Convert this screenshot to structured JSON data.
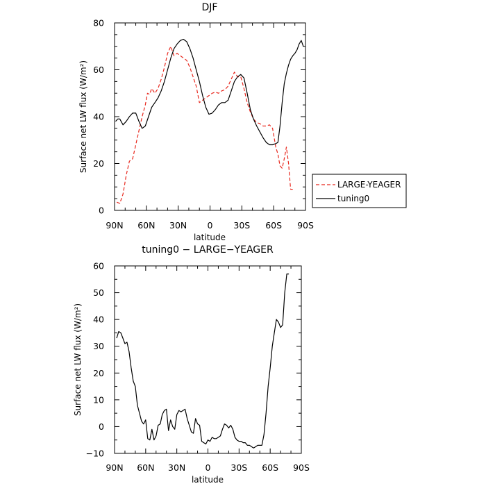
{
  "chart_data": [
    {
      "type": "line",
      "title": "DJF",
      "xlabel": "latitude",
      "ylabel": "Surface net LW flux (W/m²)",
      "xlim": [
        90,
        -90
      ],
      "ylim": [
        0,
        80
      ],
      "x_ticks": [
        90,
        60,
        30,
        0,
        -30,
        -60,
        -90
      ],
      "x_tick_labels": [
        "90N",
        "60N",
        "30N",
        "0",
        "30S",
        "60S",
        "90S"
      ],
      "y_ticks": [
        0,
        20,
        40,
        60,
        80
      ],
      "y_tick_labels": [
        "0",
        "20",
        "40",
        "60",
        "80"
      ],
      "grid": false,
      "legend": "right-outside",
      "series": [
        {
          "name": "LARGE-YEAGER",
          "color": "#e8281e",
          "dash": "dashed",
          "x": [
            88,
            85,
            82,
            79,
            76,
            73,
            70,
            67,
            64,
            61,
            59,
            57,
            55,
            52,
            49,
            46,
            43,
            40,
            37,
            34,
            31,
            28,
            25,
            22,
            19,
            16,
            13,
            10,
            7,
            4,
            1,
            -2,
            -5,
            -8,
            -11,
            -14,
            -17,
            -20,
            -23,
            -26,
            -29,
            -32,
            -35,
            -38,
            -41,
            -44,
            -47,
            -50,
            -53,
            -56,
            -59,
            -62,
            -64,
            -66,
            -68,
            -70,
            -72,
            -74,
            -76,
            -78
          ],
          "values": [
            3.5,
            3,
            7,
            15,
            21,
            22,
            28,
            34,
            40,
            45,
            50,
            49.5,
            52,
            50,
            52,
            56,
            61,
            67,
            70,
            66,
            67,
            66,
            65,
            64,
            61,
            57,
            53,
            46,
            47,
            48,
            49,
            50,
            50.5,
            50,
            51,
            51.5,
            53,
            56,
            59,
            57,
            57,
            52,
            46,
            42,
            39,
            37.5,
            37,
            36,
            36,
            36.5,
            35,
            27,
            24,
            19,
            18,
            22,
            27,
            20,
            9,
            9
          ]
        },
        {
          "name": "tuning0",
          "color": "#000000",
          "dash": "solid",
          "x": [
            89,
            87,
            85,
            82,
            79,
            76,
            73,
            70,
            67,
            64,
            61,
            58,
            55,
            52,
            49,
            46,
            43,
            40,
            37,
            34,
            31,
            28,
            25,
            22,
            19,
            16,
            13,
            10,
            7,
            4,
            1,
            -2,
            -5,
            -8,
            -11,
            -14,
            -17,
            -20,
            -23,
            -26,
            -29,
            -32,
            -35,
            -38,
            -41,
            -44,
            -47,
            -50,
            -53,
            -56,
            -59,
            -62,
            -64,
            -66,
            -68,
            -70,
            -72,
            -74,
            -76,
            -78,
            -80,
            -82,
            -84,
            -86,
            -88
          ],
          "values": [
            38,
            39,
            39,
            36.5,
            38,
            40,
            41.5,
            41.5,
            38,
            35,
            36,
            40,
            44,
            46,
            48,
            51,
            55,
            60,
            65,
            69,
            71,
            72.5,
            73,
            72,
            69,
            65,
            60,
            55,
            49,
            44,
            41,
            41.5,
            43,
            45,
            46,
            46,
            47,
            51,
            55,
            57,
            58,
            56.5,
            50,
            43,
            39,
            36,
            33.5,
            31,
            29,
            28,
            28,
            28.5,
            29,
            36,
            46,
            54,
            58.5,
            62,
            64.5,
            66,
            67,
            68.5,
            71,
            72.5,
            70
          ]
        }
      ]
    },
    {
      "type": "line",
      "title": "tuning0 − LARGE−YEAGER",
      "xlabel": "latitude",
      "ylabel": "Surface net LW flux (W/m²)",
      "xlim": [
        90,
        -90
      ],
      "ylim": [
        -10,
        60
      ],
      "x_ticks": [
        90,
        60,
        30,
        0,
        -30,
        -60,
        -90
      ],
      "x_tick_labels": [
        "90N",
        "60N",
        "30N",
        "0",
        "30S",
        "60S",
        "90S"
      ],
      "y_ticks": [
        -10,
        0,
        10,
        20,
        30,
        40,
        50,
        60
      ],
      "y_tick_labels": [
        "−10",
        "0",
        "10",
        "20",
        "30",
        "40",
        "50",
        "60"
      ],
      "grid": false,
      "series": [
        {
          "color": "#000000",
          "dash": "solid",
          "x": [
            88,
            86,
            84,
            82,
            80,
            78,
            76,
            74,
            72,
            70,
            68,
            66,
            64,
            62,
            60,
            58,
            56,
            54,
            52,
            50,
            48,
            46,
            44,
            42,
            40,
            38,
            36,
            34,
            32,
            30,
            28,
            26,
            24,
            22,
            20,
            18,
            16,
            14,
            12,
            10,
            8,
            6,
            4,
            2,
            0,
            -2,
            -4,
            -6,
            -8,
            -10,
            -12,
            -14,
            -16,
            -18,
            -20,
            -22,
            -24,
            -26,
            -28,
            -30,
            -32,
            -34,
            -36,
            -38,
            -40,
            -42,
            -44,
            -46,
            -48,
            -50,
            -52,
            -54,
            -56,
            -58,
            -60,
            -62,
            -64,
            -66,
            -68,
            -70,
            -72,
            -74,
            -76,
            -78
          ],
          "values": [
            33,
            35.5,
            35,
            33,
            31,
            31.5,
            28,
            22,
            17,
            15,
            8,
            5,
            2,
            1,
            2.5,
            -4.5,
            -5,
            -1,
            -5,
            -3.5,
            0.5,
            1,
            4.5,
            6,
            6.5,
            -1.5,
            2.5,
            0,
            -1,
            4.5,
            6,
            5.5,
            6,
            6.5,
            3,
            0.5,
            -2,
            -2.5,
            3,
            1,
            0.5,
            -5.5,
            -6,
            -6.5,
            -5,
            -5.5,
            -4,
            -4.5,
            -4.5,
            -4,
            -3.5,
            -1,
            1,
            0.5,
            -0.5,
            0.5,
            -1,
            -4,
            -5,
            -5.5,
            -5.5,
            -6,
            -6,
            -7,
            -7,
            -7.5,
            -8,
            -7.5,
            -7,
            -7,
            -7,
            -3,
            5,
            15,
            22,
            30,
            35,
            40,
            39,
            37,
            38,
            50,
            57,
            57
          ]
        }
      ]
    }
  ]
}
